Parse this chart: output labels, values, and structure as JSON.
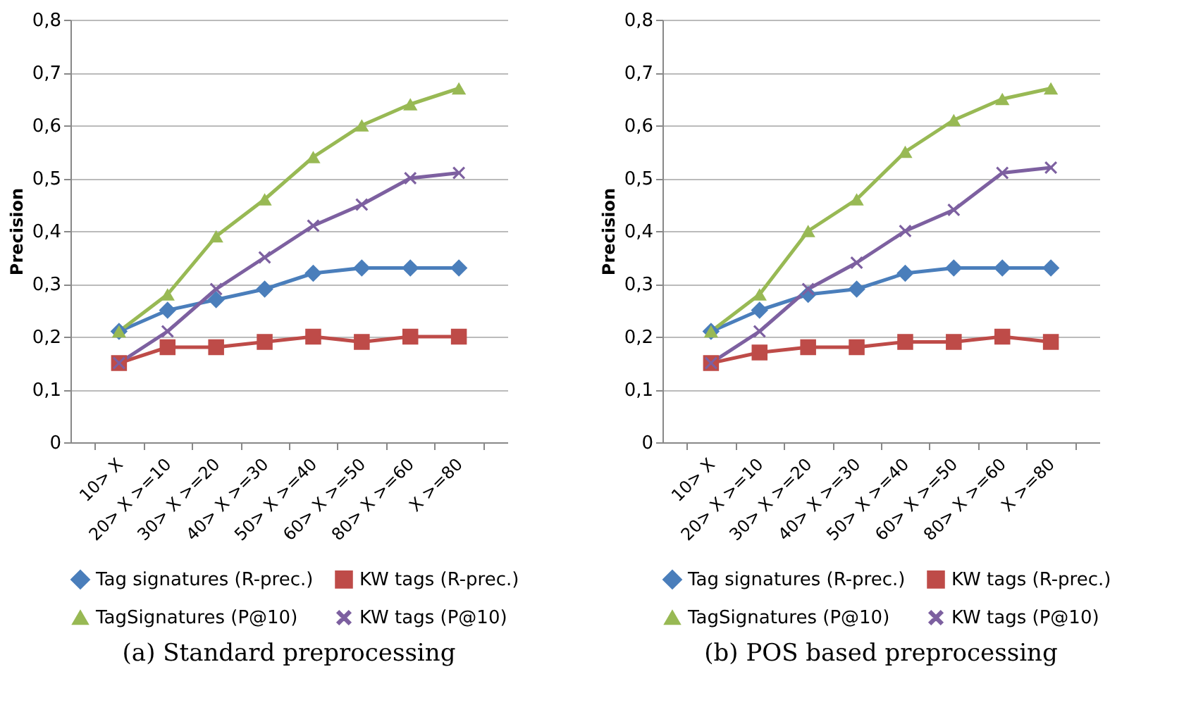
{
  "chart_data": [
    {
      "type": "line",
      "title": "(a) Standard preprocessing",
      "ylabel": "Precision",
      "categories": [
        "10> X",
        "20> X >=10",
        "30> X >=20",
        "40> X >=30",
        "50> X >=40",
        "60> X >=50",
        "80> X >=60",
        "X >=80"
      ],
      "series": [
        {
          "name": "Tag signatures (R-prec.)",
          "color": "#4a7ebb",
          "marker": "diamond",
          "values": [
            0.21,
            0.25,
            0.27,
            0.29,
            0.32,
            0.33,
            0.33,
            0.33
          ]
        },
        {
          "name": "KW tags (R-prec.)",
          "color": "#be4b48",
          "marker": "square",
          "values": [
            0.15,
            0.18,
            0.18,
            0.19,
            0.2,
            0.19,
            0.2,
            0.2
          ]
        },
        {
          "name": "TagSignatures (P@10)",
          "color": "#98b954",
          "marker": "triangle",
          "values": [
            0.21,
            0.28,
            0.39,
            0.46,
            0.54,
            0.6,
            0.64,
            0.67
          ]
        },
        {
          "name": "KW tags (P@10)",
          "color": "#7d60a0",
          "marker": "cross",
          "values": [
            0.15,
            0.21,
            0.29,
            0.35,
            0.41,
            0.45,
            0.5,
            0.51
          ]
        }
      ],
      "ylim": [
        0,
        0.8
      ],
      "yticks": [
        0,
        {
          "value": 0.1,
          "label": "0,1"
        },
        {
          "value": 0.2,
          "label": "0,2"
        },
        {
          "value": 0.3,
          "label": "0,3"
        },
        {
          "value": 0.4,
          "label": "0,4"
        },
        {
          "value": 0.5,
          "label": "0,5"
        },
        {
          "value": 0.6,
          "label": "0,6"
        },
        {
          "value": 0.7,
          "label": "0,7"
        },
        {
          "value": 0.8,
          "label": "0,8"
        }
      ],
      "grid": "y",
      "legend": "bottom",
      "line_style": "solid"
    },
    {
      "type": "line",
      "title": "(b) POS based preprocessing",
      "ylabel": "Precision",
      "categories": [
        "10> X",
        "20> X >=10",
        "30> X >=20",
        "40> X >=30",
        "50> X >=40",
        "60> X >=50",
        "80> X >=60",
        "X >=80"
      ],
      "series": [
        {
          "name": "Tag signatures (R-prec.)",
          "color": "#4a7ebb",
          "marker": "diamond",
          "values": [
            0.21,
            0.25,
            0.28,
            0.29,
            0.32,
            0.33,
            0.33,
            0.33
          ]
        },
        {
          "name": "KW tags (R-prec.)",
          "color": "#be4b48",
          "marker": "square",
          "values": [
            0.15,
            0.17,
            0.18,
            0.18,
            0.19,
            0.19,
            0.2,
            0.19
          ]
        },
        {
          "name": "TagSignatures (P@10)",
          "color": "#98b954",
          "marker": "triangle",
          "values": [
            0.21,
            0.28,
            0.4,
            0.46,
            0.55,
            0.61,
            0.65,
            0.67
          ]
        },
        {
          "name": "KW tags (P@10)",
          "color": "#7d60a0",
          "marker": "cross",
          "values": [
            0.15,
            0.21,
            0.29,
            0.34,
            0.4,
            0.44,
            0.51,
            0.52
          ]
        }
      ],
      "ylim": [
        0,
        0.8
      ],
      "yticks": [
        0,
        {
          "value": 0.1,
          "label": "0,1"
        },
        {
          "value": 0.2,
          "label": "0,2"
        },
        {
          "value": 0.3,
          "label": "0,3"
        },
        {
          "value": 0.4,
          "label": "0,4"
        },
        {
          "value": 0.5,
          "label": "0,5"
        },
        {
          "value": 0.6,
          "label": "0,6"
        },
        {
          "value": 0.7,
          "label": "0,7"
        },
        {
          "value": 0.8,
          "label": "0,8"
        }
      ],
      "grid": "y",
      "legend": "bottom",
      "line_style": "solid"
    }
  ]
}
